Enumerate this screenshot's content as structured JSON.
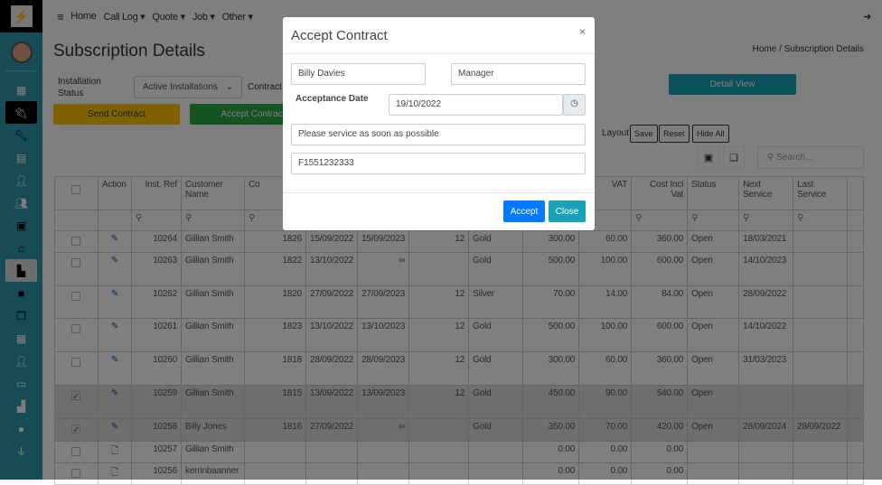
{
  "nav": {
    "items": [
      "Home",
      "Call Log ▾",
      "Quote ▾",
      "Job ▾",
      "Other ▾"
    ]
  },
  "page": {
    "title": "Subscription Details",
    "breadcrumb": "Home / Subscription Details",
    "filter_label": "Installation Status",
    "filter_value": "Active Installations",
    "contract_label": "Contract",
    "send_contract": "Send Contract",
    "accept_contract": "Accept Contract",
    "detail_view": "Detail View",
    "layout_label": "Layout",
    "save": "Save",
    "reset": "Reset",
    "hide_all": "Hide All",
    "search_placeholder": "Search..."
  },
  "colors": {
    "sidebar": "#2f97ab",
    "send": "#ffc107",
    "accept": "#28a745",
    "detail": "#17a2b8",
    "modal_accept": "#007bff",
    "modal_close": "#17a2b8"
  },
  "table": {
    "headers": [
      "",
      "Action",
      "Inst. Ref",
      "Customer Name",
      "Co",
      "",
      "",
      "",
      "",
      "",
      "VAT",
      "Cost Incl Vat",
      "Status",
      "Next Service",
      "Last Service",
      ""
    ],
    "rows": [
      {
        "sel": false,
        "icon": "edit",
        "c": [
          "10264",
          "Gillian Smith",
          "1826",
          "15/09/2022",
          "15/09/2023",
          "12",
          "Gold",
          "300.00",
          "60.00",
          "360.00",
          "Open",
          "18/03/2021",
          ""
        ]
      },
      {
        "sel": false,
        "icon": "edit",
        "c": [
          "10263",
          "Gillian Smith",
          "1822",
          "13/10/2022",
          "∞",
          "",
          "Gold",
          "500.00",
          "100.00",
          "600.00",
          "Open",
          "14/10/2023",
          ""
        ]
      },
      {
        "sel": false,
        "icon": "edit",
        "c": [
          "10262",
          "Gillian Smith",
          "1820",
          "27/09/2022",
          "27/09/2023",
          "12",
          "Silver",
          "70.00",
          "14.00",
          "84.00",
          "Open",
          "28/09/2022",
          ""
        ]
      },
      {
        "sel": false,
        "icon": "edit",
        "c": [
          "10261",
          "Gillian Smith",
          "1823",
          "13/10/2022",
          "13/10/2023",
          "12",
          "Gold",
          "500.00",
          "100.00",
          "600.00",
          "Open",
          "14/10/2022",
          ""
        ]
      },
      {
        "sel": false,
        "icon": "edit",
        "c": [
          "10260",
          "Gillian Smith",
          "1818",
          "28/09/2022",
          "28/09/2023",
          "12",
          "Gold",
          "300.00",
          "60.00",
          "360.00",
          "Open",
          "31/03/2023",
          ""
        ]
      },
      {
        "sel": true,
        "icon": "edit",
        "c": [
          "10259",
          "Gillian Smith",
          "1815",
          "13/09/2022",
          "13/09/2023",
          "12",
          "Gold",
          "450.00",
          "90.00",
          "540.00",
          "Open",
          "",
          ""
        ]
      },
      {
        "sel": true,
        "icon": "edit",
        "c": [
          "10258",
          "Billy Jones",
          "1816",
          "27/09/2022",
          "∞",
          "",
          "Gold",
          "350.00",
          "70.00",
          "420.00",
          "Open",
          "28/09/2024",
          "28/09/2022"
        ]
      },
      {
        "sel": false,
        "icon": "document",
        "c": [
          "10257",
          "Gillian Smith",
          "",
          "",
          "",
          "",
          "",
          "0.00",
          "0.00",
          "0.00",
          "",
          "",
          ""
        ]
      },
      {
        "sel": false,
        "icon": "document",
        "c": [
          "10256",
          "kerrinbaanner",
          "",
          "",
          "",
          "",
          "",
          "0.00",
          "0.00",
          "0.00",
          "",
          "",
          ""
        ]
      }
    ]
  },
  "modal": {
    "title": "Accept Contract",
    "close_x": "×",
    "name": "Billy Davies",
    "position": "Manager",
    "date_label": "Acceptance Date",
    "date": "19/10/2022",
    "notes": "Please service as soon as possible",
    "ref": "F1551232333",
    "accept": "Accept",
    "close": "Close"
  }
}
